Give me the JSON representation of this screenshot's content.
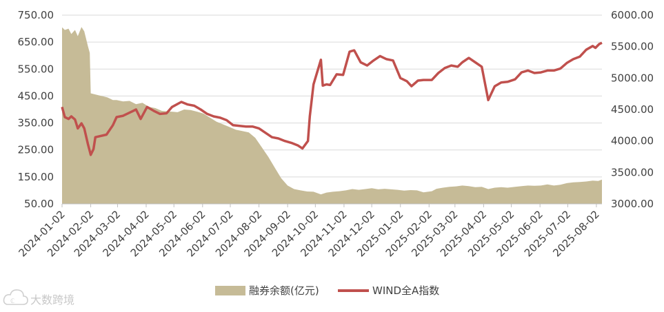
{
  "watermark": {
    "text": "大数跨境",
    "icon": "cloud-logo-icon"
  },
  "colors": {
    "area": "#c6bb97",
    "line": "#c0504d",
    "grid": "#d9d9d9",
    "axis": "#bfbfbf",
    "text": "#404040"
  },
  "chart_data": {
    "type": "area+line",
    "title": "",
    "grid": true,
    "legend_position": "bottom",
    "left_axis": {
      "min": 50,
      "max": 750,
      "ticks": [
        "50.00",
        "150.00",
        "250.00",
        "350.00",
        "450.00",
        "550.00",
        "650.00",
        "750.00"
      ]
    },
    "right_axis": {
      "min": 3000,
      "max": 6000,
      "ticks": [
        "3000.00",
        "3500.00",
        "4000.00",
        "4500.00",
        "5000.00",
        "5500.00",
        "6000.00"
      ]
    },
    "x_axis": {
      "start": "2024-01-02",
      "end": "2025-08-08",
      "ticks": [
        "2024-01-02",
        "2024-02-02",
        "2024-03-02",
        "2024-04-02",
        "2024-05-02",
        "2024-06-02",
        "2024-07-02",
        "2024-08-02",
        "2024-09-02",
        "2024-10-02",
        "2024-11-02",
        "2024-12-02",
        "2025-01-02",
        "2025-02-02",
        "2025-03-02",
        "2025-04-02",
        "2025-05-02",
        "2025-06-02",
        "2025-07-02",
        "2025-08-02"
      ]
    },
    "series": [
      {
        "name": "融券余额(亿元)",
        "type": "area",
        "axis": "left",
        "points": [
          [
            "2024-01-02",
            705
          ],
          [
            "2024-01-05",
            695
          ],
          [
            "2024-01-09",
            700
          ],
          [
            "2024-01-12",
            680
          ],
          [
            "2024-01-16",
            695
          ],
          [
            "2024-01-19",
            672
          ],
          [
            "2024-01-23",
            706
          ],
          [
            "2024-01-26",
            690
          ],
          [
            "2024-01-30",
            635
          ],
          [
            "2024-02-01",
            610
          ],
          [
            "2024-02-02",
            460
          ],
          [
            "2024-02-08",
            455
          ],
          [
            "2024-02-20",
            445
          ],
          [
            "2024-02-26",
            435
          ],
          [
            "2024-03-01",
            435
          ],
          [
            "2024-03-08",
            430
          ],
          [
            "2024-03-15",
            432
          ],
          [
            "2024-03-22",
            420
          ],
          [
            "2024-03-29",
            425
          ],
          [
            "2024-04-05",
            410
          ],
          [
            "2024-04-12",
            405
          ],
          [
            "2024-04-19",
            395
          ],
          [
            "2024-04-26",
            393
          ],
          [
            "2024-05-06",
            390
          ],
          [
            "2024-05-13",
            400
          ],
          [
            "2024-05-20",
            398
          ],
          [
            "2024-05-27",
            392
          ],
          [
            "2024-06-03",
            385
          ],
          [
            "2024-06-10",
            370
          ],
          [
            "2024-06-17",
            355
          ],
          [
            "2024-06-24",
            345
          ],
          [
            "2024-07-01",
            335
          ],
          [
            "2024-07-08",
            325
          ],
          [
            "2024-07-15",
            320
          ],
          [
            "2024-07-22",
            315
          ],
          [
            "2024-07-29",
            295
          ],
          [
            "2024-08-05",
            260
          ],
          [
            "2024-08-12",
            225
          ],
          [
            "2024-08-19",
            185
          ],
          [
            "2024-08-26",
            145
          ],
          [
            "2024-09-02",
            118
          ],
          [
            "2024-09-09",
            105
          ],
          [
            "2024-09-16",
            100
          ],
          [
            "2024-09-23",
            96
          ],
          [
            "2024-09-30",
            95
          ],
          [
            "2024-10-08",
            85
          ],
          [
            "2024-10-14",
            92
          ],
          [
            "2024-10-21",
            95
          ],
          [
            "2024-10-28",
            97
          ],
          [
            "2024-11-04",
            100
          ],
          [
            "2024-11-11",
            105
          ],
          [
            "2024-11-18",
            102
          ],
          [
            "2024-11-25",
            105
          ],
          [
            "2024-12-02",
            108
          ],
          [
            "2024-12-09",
            104
          ],
          [
            "2024-12-16",
            106
          ],
          [
            "2024-12-23",
            104
          ],
          [
            "2024-12-30",
            102
          ],
          [
            "2025-01-06",
            99
          ],
          [
            "2025-01-13",
            101
          ],
          [
            "2025-01-20",
            100
          ],
          [
            "2025-01-27",
            93
          ],
          [
            "2025-02-05",
            97
          ],
          [
            "2025-02-10",
            106
          ],
          [
            "2025-02-17",
            110
          ],
          [
            "2025-02-24",
            113
          ],
          [
            "2025-03-03",
            115
          ],
          [
            "2025-03-10",
            118
          ],
          [
            "2025-03-17",
            116
          ],
          [
            "2025-03-24",
            112
          ],
          [
            "2025-03-31",
            113
          ],
          [
            "2025-04-07",
            105
          ],
          [
            "2025-04-14",
            110
          ],
          [
            "2025-04-21",
            112
          ],
          [
            "2025-04-28",
            110
          ],
          [
            "2025-05-06",
            113
          ],
          [
            "2025-05-13",
            116
          ],
          [
            "2025-05-20",
            118
          ],
          [
            "2025-05-27",
            117
          ],
          [
            "2025-06-03",
            118
          ],
          [
            "2025-06-10",
            122
          ],
          [
            "2025-06-17",
            118
          ],
          [
            "2025-06-24",
            121
          ],
          [
            "2025-07-01",
            127
          ],
          [
            "2025-07-08",
            130
          ],
          [
            "2025-07-15",
            131
          ],
          [
            "2025-07-22",
            133
          ],
          [
            "2025-07-29",
            136
          ],
          [
            "2025-08-04",
            135
          ],
          [
            "2025-08-08",
            140
          ]
        ]
      },
      {
        "name": "WIND全A指数",
        "type": "line",
        "axis": "right",
        "points": [
          [
            "2024-01-02",
            4540
          ],
          [
            "2024-01-05",
            4380
          ],
          [
            "2024-01-09",
            4350
          ],
          [
            "2024-01-12",
            4390
          ],
          [
            "2024-01-16",
            4340
          ],
          [
            "2024-01-19",
            4200
          ],
          [
            "2024-01-23",
            4280
          ],
          [
            "2024-01-26",
            4200
          ],
          [
            "2024-01-30",
            3950
          ],
          [
            "2024-02-02",
            3780
          ],
          [
            "2024-02-05",
            3870
          ],
          [
            "2024-02-07",
            4060
          ],
          [
            "2024-02-19",
            4100
          ],
          [
            "2024-02-26",
            4250
          ],
          [
            "2024-03-01",
            4380
          ],
          [
            "2024-03-08",
            4400
          ],
          [
            "2024-03-15",
            4450
          ],
          [
            "2024-03-22",
            4500
          ],
          [
            "2024-03-27",
            4350
          ],
          [
            "2024-04-03",
            4540
          ],
          [
            "2024-04-10",
            4480
          ],
          [
            "2024-04-17",
            4430
          ],
          [
            "2024-04-24",
            4440
          ],
          [
            "2024-04-30",
            4540
          ],
          [
            "2024-05-10",
            4620
          ],
          [
            "2024-05-17",
            4580
          ],
          [
            "2024-05-24",
            4560
          ],
          [
            "2024-05-31",
            4500
          ],
          [
            "2024-06-07",
            4430
          ],
          [
            "2024-06-14",
            4390
          ],
          [
            "2024-06-21",
            4370
          ],
          [
            "2024-06-28",
            4330
          ],
          [
            "2024-07-05",
            4250
          ],
          [
            "2024-07-12",
            4240
          ],
          [
            "2024-07-19",
            4230
          ],
          [
            "2024-07-26",
            4230
          ],
          [
            "2024-08-02",
            4200
          ],
          [
            "2024-08-09",
            4130
          ],
          [
            "2024-08-16",
            4060
          ],
          [
            "2024-08-23",
            4040
          ],
          [
            "2024-08-30",
            4000
          ],
          [
            "2024-09-06",
            3970
          ],
          [
            "2024-09-13",
            3930
          ],
          [
            "2024-09-18",
            3880
          ],
          [
            "2024-09-24",
            4000
          ],
          [
            "2024-09-26",
            4390
          ],
          [
            "2024-09-30",
            4900
          ],
          [
            "2024-10-08",
            5290
          ],
          [
            "2024-10-10",
            4880
          ],
          [
            "2024-10-14",
            4900
          ],
          [
            "2024-10-18",
            4890
          ],
          [
            "2024-10-25",
            5060
          ],
          [
            "2024-11-01",
            5050
          ],
          [
            "2024-11-08",
            5420
          ],
          [
            "2024-11-13",
            5440
          ],
          [
            "2024-11-20",
            5250
          ],
          [
            "2024-11-27",
            5200
          ],
          [
            "2024-12-04",
            5280
          ],
          [
            "2024-12-11",
            5350
          ],
          [
            "2024-12-18",
            5300
          ],
          [
            "2024-12-25",
            5280
          ],
          [
            "2025-01-02",
            5000
          ],
          [
            "2025-01-09",
            4950
          ],
          [
            "2025-01-14",
            4870
          ],
          [
            "2025-01-21",
            4960
          ],
          [
            "2025-01-27",
            4970
          ],
          [
            "2025-02-05",
            4970
          ],
          [
            "2025-02-12",
            5080
          ],
          [
            "2025-02-19",
            5160
          ],
          [
            "2025-02-26",
            5200
          ],
          [
            "2025-03-05",
            5180
          ],
          [
            "2025-03-10",
            5250
          ],
          [
            "2025-03-17",
            5320
          ],
          [
            "2025-03-24",
            5250
          ],
          [
            "2025-03-31",
            5180
          ],
          [
            "2025-04-07",
            4650
          ],
          [
            "2025-04-14",
            4870
          ],
          [
            "2025-04-21",
            4930
          ],
          [
            "2025-04-28",
            4940
          ],
          [
            "2025-05-06",
            4980
          ],
          [
            "2025-05-13",
            5090
          ],
          [
            "2025-05-20",
            5120
          ],
          [
            "2025-05-27",
            5080
          ],
          [
            "2025-06-03",
            5090
          ],
          [
            "2025-06-10",
            5120
          ],
          [
            "2025-06-17",
            5120
          ],
          [
            "2025-06-24",
            5150
          ],
          [
            "2025-07-01",
            5240
          ],
          [
            "2025-07-08",
            5300
          ],
          [
            "2025-07-15",
            5340
          ],
          [
            "2025-07-22",
            5450
          ],
          [
            "2025-07-29",
            5510
          ],
          [
            "2025-08-01",
            5480
          ],
          [
            "2025-08-05",
            5540
          ],
          [
            "2025-08-08",
            5560
          ]
        ]
      }
    ]
  }
}
